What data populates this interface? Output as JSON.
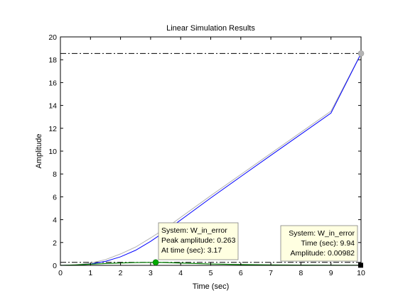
{
  "chart_data": {
    "type": "line",
    "title": "Linear Simulation Results",
    "xlabel": "Time (sec)",
    "ylabel": "Amplitude",
    "xlim": [
      0,
      10
    ],
    "ylim": [
      0,
      20
    ],
    "xticks": [
      0,
      1,
      2,
      3,
      4,
      5,
      6,
      7,
      8,
      9,
      10
    ],
    "yticks": [
      0,
      2,
      4,
      6,
      8,
      10,
      12,
      14,
      16,
      18,
      20
    ],
    "grid": false,
    "colors": {
      "ramp_input": "#b0b0b0",
      "ramp_output": "#0000ff",
      "error": "#007f00",
      "reference_line": "#000000"
    },
    "series": [
      {
        "x": [
          0,
          0.5,
          1,
          1.5,
          2,
          2.5,
          3,
          3.5,
          4,
          5,
          6,
          7,
          8,
          9,
          10
        ],
        "values": [
          0,
          0.05,
          0.2,
          0.5,
          1.0,
          1.6,
          2.4,
          3.25,
          4.2,
          6.1,
          7.95,
          9.8,
          11.65,
          13.5,
          18.55
        ]
      },
      {
        "x": [
          0,
          0.5,
          1,
          1.5,
          2,
          2.5,
          3,
          3.5,
          4,
          5,
          6,
          7,
          8,
          9,
          10
        ],
        "values": [
          0,
          0.02,
          0.12,
          0.35,
          0.75,
          1.32,
          2.1,
          3.0,
          3.97,
          5.9,
          7.77,
          9.63,
          11.48,
          13.33,
          18.54
        ]
      },
      {
        "x": [
          0,
          0.5,
          1,
          1.5,
          2,
          2.5,
          3,
          3.17,
          3.5,
          4,
          5,
          6,
          7,
          8,
          9,
          10
        ],
        "values": [
          0,
          0.04,
          0.1,
          0.16,
          0.21,
          0.245,
          0.26,
          0.263,
          0.25,
          0.2,
          0.12,
          0.07,
          0.04,
          0.025,
          0.015,
          0.0098
        ]
      }
    ],
    "reference_lines": [
      {
        "orientation": "horizontal",
        "value": 18.55,
        "style": "dash-dot"
      },
      {
        "orientation": "horizontal",
        "value": 0.263,
        "style": "dash-dot"
      },
      {
        "orientation": "vertical",
        "value": 10,
        "style": "dotted"
      }
    ],
    "markers": [
      {
        "x": 3.17,
        "y": 0.263,
        "color": "#00aa00"
      },
      {
        "x": 10,
        "y": 18.55,
        "color": "#b4b4b4"
      },
      {
        "x": 9.94,
        "y": 0.00982,
        "color": "#000000"
      }
    ],
    "annotations": [
      {
        "lines": [
          "System: W_in_error",
          "Peak amplitude: 0.263",
          "At time (sec): 3.17"
        ],
        "x": 3.17,
        "y": 0.263
      },
      {
        "lines": [
          "System: W_in_error",
          "Time (sec): 9.94",
          "Amplitude: 0.00982"
        ],
        "x": 9.94,
        "y": 0.00982
      }
    ]
  }
}
